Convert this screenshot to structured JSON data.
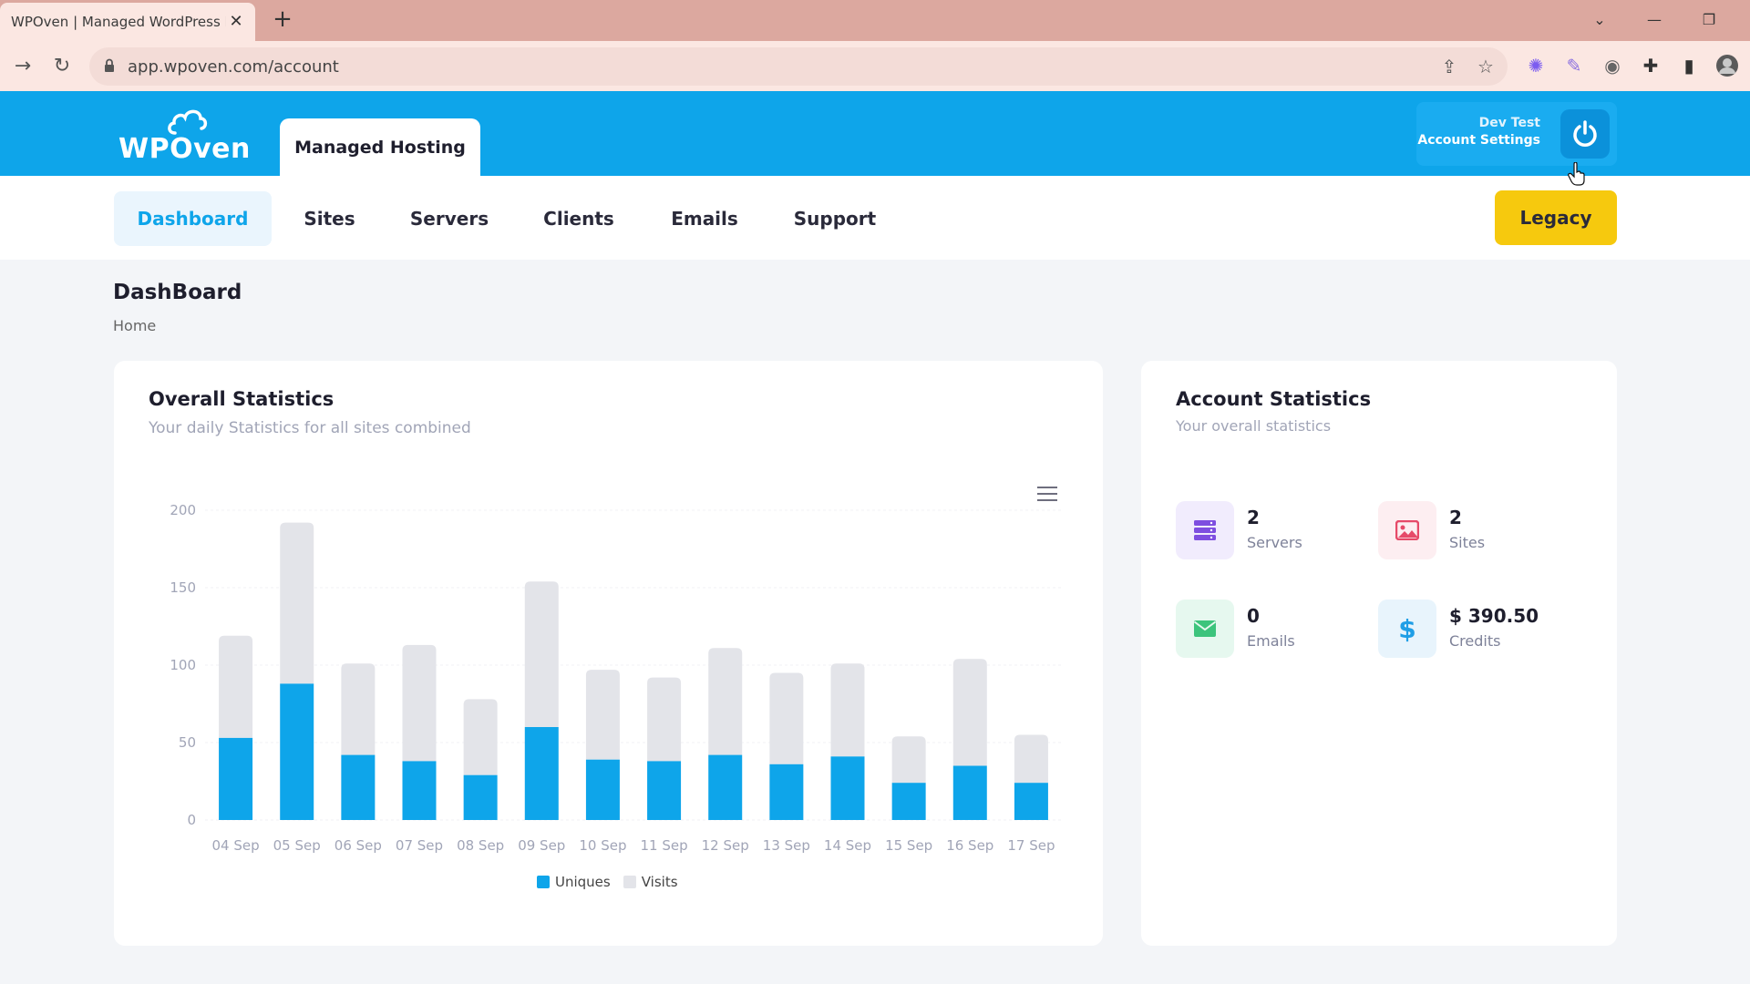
{
  "browser": {
    "tab_title": "WPOven | Managed WordPress H",
    "url": "app.wpoven.com/account"
  },
  "header": {
    "logo_text": "WPOven",
    "tab_label": "Managed Hosting",
    "account_name": "Dev Test",
    "account_settings": "Account Settings"
  },
  "nav": {
    "items": [
      {
        "label": "Dashboard",
        "active": true
      },
      {
        "label": "Sites"
      },
      {
        "label": "Servers"
      },
      {
        "label": "Clients"
      },
      {
        "label": "Emails"
      },
      {
        "label": "Support"
      }
    ],
    "legacy_label": "Legacy"
  },
  "page": {
    "title": "DashBoard",
    "breadcrumb": "Home"
  },
  "overall": {
    "title": "Overall Statistics",
    "subtitle": "Your daily Statistics for all sites combined"
  },
  "account_stats": {
    "title": "Account Statistics",
    "subtitle": "Your overall statistics",
    "items": [
      {
        "value": "2",
        "label": "Servers",
        "icon": "servers-icon",
        "bg": "#f1ecfd",
        "color": "#7e4ee0"
      },
      {
        "value": "2",
        "label": "Sites",
        "icon": "image-icon",
        "bg": "#fdeef1",
        "color": "#e64a69"
      },
      {
        "value": "0",
        "label": "Emails",
        "icon": "mail-icon",
        "bg": "#e6f8ef",
        "color": "#3cc47c"
      },
      {
        "value": "$ 390.50",
        "label": "Credits",
        "icon": "dollar-icon",
        "bg": "#e8f4fc",
        "color": "#1f9ee6"
      }
    ]
  },
  "colors": {
    "brand": "#0ea5ea",
    "uniques": "#0ea5ea",
    "visits": "#e3e4e9",
    "legacy": "#f6c90e"
  },
  "chart_data": {
    "type": "bar",
    "stacked": true,
    "categories": [
      "04 Sep",
      "05 Sep",
      "06 Sep",
      "07 Sep",
      "08 Sep",
      "09 Sep",
      "10 Sep",
      "11 Sep",
      "12 Sep",
      "13 Sep",
      "14 Sep",
      "15 Sep",
      "16 Sep",
      "17 Sep"
    ],
    "series": [
      {
        "name": "Uniques",
        "values": [
          53,
          88,
          42,
          38,
          29,
          60,
          39,
          38,
          42,
          36,
          41,
          24,
          35,
          24
        ]
      },
      {
        "name": "Visits",
        "values": [
          66,
          104,
          59,
          75,
          49,
          94,
          58,
          54,
          69,
          59,
          60,
          30,
          69,
          31
        ]
      }
    ],
    "yticks": [
      0,
      50,
      100,
      150,
      200
    ],
    "ylim": [
      0,
      200
    ],
    "legend_position": "bottom-center",
    "grid": true
  }
}
